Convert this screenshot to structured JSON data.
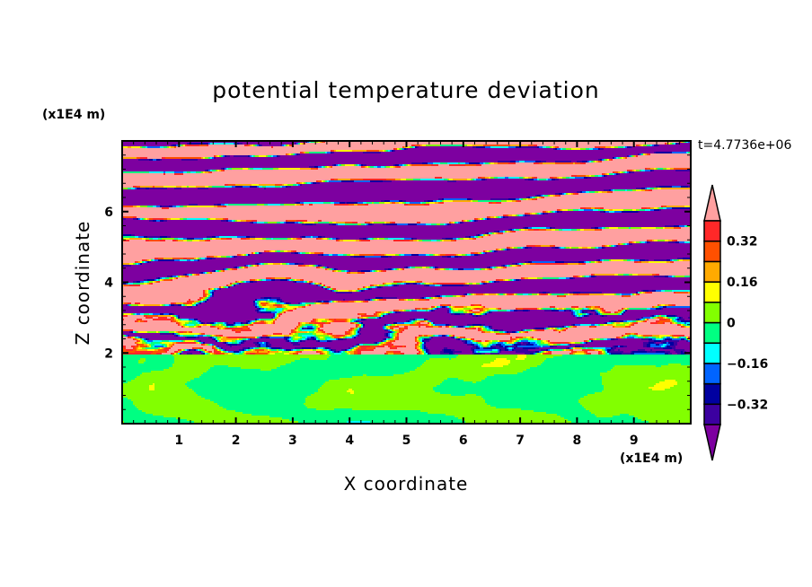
{
  "chart_data": {
    "type": "heatmap",
    "title": "potential temperature deviation",
    "xlabel": "X coordinate",
    "ylabel": "Z coordinate",
    "x_unit_label": "(x1E4 m)",
    "y_unit_label": "(x1E4 m)",
    "time_label": "t=4.7736e+06",
    "xlim": [
      0,
      10
    ],
    "ylim": [
      0,
      8
    ],
    "xticks": [
      1,
      2,
      3,
      4,
      5,
      6,
      7,
      8,
      9
    ],
    "xtick_labels": [
      "1",
      "2",
      "3",
      "4",
      "5",
      "6",
      "7",
      "8",
      "9"
    ],
    "yticks": [
      2,
      4,
      6
    ],
    "ytick_labels": [
      "2",
      "4",
      "6"
    ],
    "colorbar": {
      "levels": [
        -0.4,
        -0.32,
        -0.24,
        -0.16,
        -0.08,
        0,
        0.08,
        0.16,
        0.24,
        0.32,
        0.4
      ],
      "tick_values": [
        0.32,
        0.16,
        0,
        -0.16,
        -0.32
      ],
      "tick_labels": [
        "0.32",
        "0.16",
        "0",
        "−0.16",
        "−0.32"
      ],
      "colors_low_to_high": [
        "#7d00a0",
        "#3c00a0",
        "#0000a0",
        "#0064ff",
        "#00ffff",
        "#00ff82",
        "#82ff00",
        "#ffff00",
        "#ffaa00",
        "#ff5000",
        "#ff2828",
        "#ffa0a0"
      ],
      "extend": "both"
    }
  }
}
